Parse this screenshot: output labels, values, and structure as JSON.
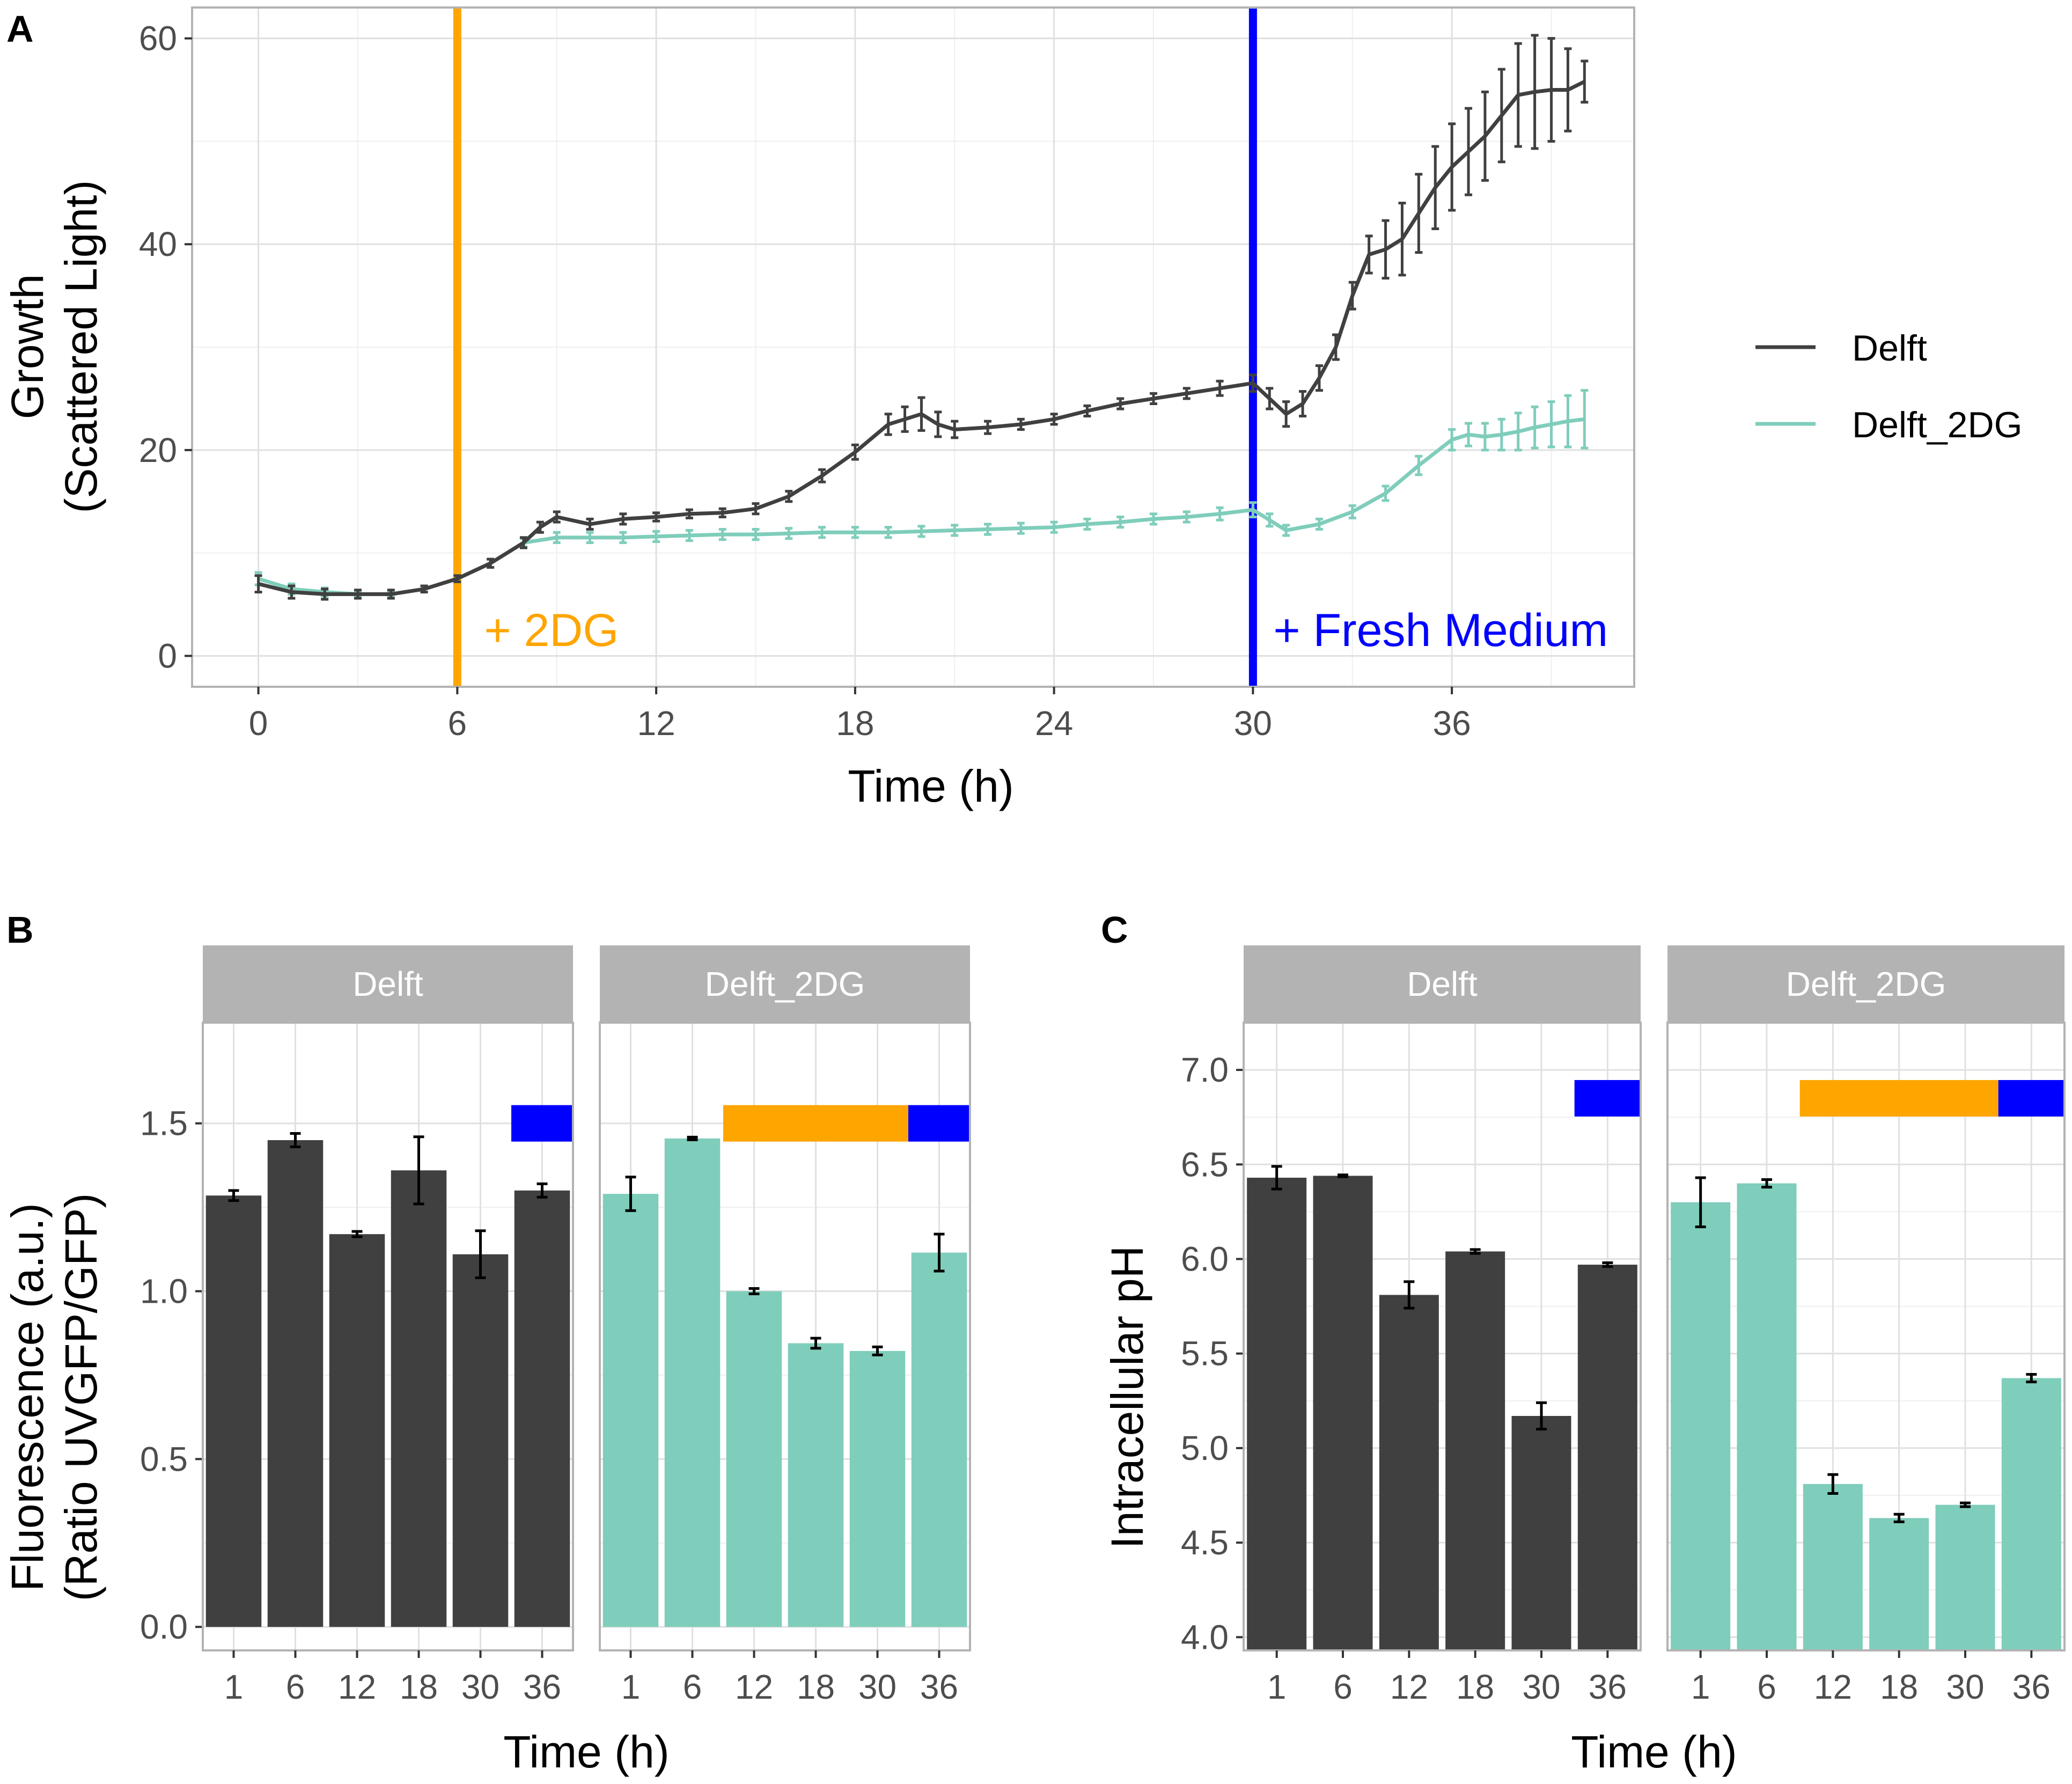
{
  "panels": {
    "a": {
      "letter": "A"
    },
    "b": {
      "letter": "B"
    },
    "c": {
      "letter": "C"
    }
  },
  "colors": {
    "delft": "#404040",
    "delft_2dg": "#7fcdbb",
    "orange": "#ffa500",
    "blue": "#0000ff",
    "strip_bg": "#b3b3b3",
    "grid": "#e0e0e0"
  },
  "legend": [
    {
      "label": "Delft",
      "color": "#404040"
    },
    {
      "label": "Delft_2DG",
      "color": "#7fcdbb"
    }
  ],
  "annotations": {
    "two_dg": "+ 2DG",
    "fresh_medium": "+ Fresh Medium"
  },
  "chart_data": [
    {
      "id": "A",
      "type": "line",
      "title": "",
      "xlabel": "Time (h)",
      "ylabel_lines": [
        "Growth",
        "(Scattered Light)"
      ],
      "xlim": [
        -2,
        41.5
      ],
      "ylim": [
        -3,
        63
      ],
      "xticks": [
        0,
        6,
        12,
        18,
        24,
        30,
        36
      ],
      "yticks": [
        0,
        20,
        40,
        60
      ],
      "vlines": [
        {
          "x": 6,
          "color": "#ffa500",
          "label": "+ 2DG"
        },
        {
          "x": 30,
          "color": "#0000ff",
          "label": "+ Fresh Medium"
        }
      ],
      "series": [
        {
          "name": "Delft",
          "x": [
            0,
            1,
            2,
            3,
            4,
            5,
            6,
            7,
            8,
            8.5,
            9,
            10,
            11,
            12,
            13,
            14,
            15,
            16,
            17,
            18,
            19,
            19.5,
            20,
            20.5,
            21,
            22,
            23,
            24,
            25,
            26,
            27,
            28,
            29,
            30,
            30.5,
            31,
            31.5,
            32,
            32.5,
            33,
            33.5,
            34,
            34.5,
            35,
            35.5,
            36,
            36.5,
            37,
            37.5,
            38,
            38.5,
            39,
            39.5,
            40
          ],
          "y": [
            7,
            6.2,
            6,
            6,
            6,
            6.5,
            7.5,
            9,
            11,
            12.5,
            13.5,
            12.8,
            13.3,
            13.5,
            13.8,
            13.9,
            14.3,
            15.5,
            17.5,
            19.8,
            22.5,
            23,
            23.5,
            22.5,
            22,
            22.2,
            22.5,
            23,
            23.8,
            24.5,
            25,
            25.5,
            26,
            26.5,
            25,
            23.5,
            24.5,
            27,
            30,
            35,
            39,
            39.5,
            40.5,
            43,
            45.5,
            47.5,
            49,
            50.5,
            52.5,
            54.5,
            54.8,
            55,
            55,
            55.8
          ],
          "err": [
            0.8,
            0.6,
            0.5,
            0.4,
            0.4,
            0.3,
            0.3,
            0.4,
            0.5,
            0.5,
            0.5,
            0.5,
            0.5,
            0.4,
            0.4,
            0.4,
            0.5,
            0.5,
            0.6,
            0.7,
            1.0,
            1.2,
            1.6,
            1.2,
            0.8,
            0.6,
            0.5,
            0.5,
            0.5,
            0.5,
            0.5,
            0.5,
            0.7,
            0.8,
            1.0,
            1.2,
            1.2,
            1.2,
            1.2,
            1.3,
            1.8,
            2.8,
            3.5,
            3.8,
            4.0,
            4.2,
            4.2,
            4.3,
            4.5,
            5.0,
            5.5,
            5.0,
            4.0,
            2.0
          ]
        },
        {
          "name": "Delft_2DG",
          "x": [
            0,
            1,
            2,
            3,
            4,
            5,
            6,
            7,
            8,
            9,
            10,
            11,
            12,
            13,
            14,
            15,
            16,
            17,
            18,
            19,
            20,
            21,
            22,
            23,
            24,
            25,
            26,
            27,
            28,
            29,
            30,
            30.5,
            31,
            32,
            33,
            34,
            35,
            36,
            36.5,
            37,
            37.5,
            38,
            38.5,
            39,
            39.5,
            40
          ],
          "y": [
            7.5,
            6.5,
            6.2,
            6,
            6,
            6.5,
            7.5,
            9,
            11,
            11.5,
            11.5,
            11.5,
            11.6,
            11.7,
            11.8,
            11.8,
            11.9,
            12,
            12,
            12,
            12.1,
            12.2,
            12.3,
            12.4,
            12.5,
            12.8,
            13,
            13.3,
            13.5,
            13.8,
            14.2,
            13.2,
            12.2,
            12.8,
            14,
            15.8,
            18.5,
            21,
            21.5,
            21.3,
            21.5,
            21.8,
            22.2,
            22.5,
            22.8,
            23
          ],
          "err": [
            0.6,
            0.5,
            0.4,
            0.3,
            0.3,
            0.3,
            0.3,
            0.4,
            0.4,
            0.5,
            0.5,
            0.5,
            0.5,
            0.5,
            0.5,
            0.5,
            0.5,
            0.5,
            0.5,
            0.5,
            0.5,
            0.5,
            0.5,
            0.5,
            0.5,
            0.5,
            0.5,
            0.5,
            0.5,
            0.6,
            0.7,
            0.6,
            0.5,
            0.5,
            0.6,
            0.7,
            0.9,
            1.0,
            1.1,
            1.3,
            1.5,
            1.8,
            2.0,
            2.2,
            2.5,
            2.8
          ]
        }
      ]
    },
    {
      "id": "B",
      "type": "bar",
      "xlabel": "Time (h)",
      "ylabel_lines": [
        "Fluorescence (a.u.)",
        "(Ratio UVGFP/GFP)"
      ],
      "ylim": [
        -0.07,
        1.8
      ],
      "yticks": [
        0.0,
        0.5,
        1.0,
        1.5
      ],
      "ytick_labels": [
        "0.0",
        "0.5",
        "1.0",
        "1.5"
      ],
      "categories": [
        "1",
        "6",
        "12",
        "18",
        "30",
        "36"
      ],
      "bars_y": 1.5,
      "facets": [
        {
          "name": "Delft",
          "color": "#404040",
          "values": [
            1.285,
            1.45,
            1.17,
            1.36,
            1.11,
            1.3
          ],
          "err": [
            0.015,
            0.02,
            0.008,
            0.1,
            0.07,
            0.02
          ],
          "bars": [
            {
              "from_index": 5,
              "to_index": 5,
              "color": "#0000ff"
            }
          ]
        },
        {
          "name": "Delft_2DG",
          "color": "#7fcdbb",
          "values": [
            1.29,
            1.455,
            1.0,
            0.845,
            0.822,
            1.115
          ],
          "err": [
            0.05,
            0.004,
            0.008,
            0.015,
            0.012,
            0.055
          ],
          "bars": [
            {
              "from_index": 2,
              "to_index": 4,
              "color": "#ffa500"
            },
            {
              "from_index": 5,
              "to_index": 5,
              "color": "#0000ff"
            }
          ]
        }
      ]
    },
    {
      "id": "C",
      "type": "bar",
      "xlabel": "Time (h)",
      "ylabel_lines": [
        "Intracellular pH"
      ],
      "ylim": [
        3.93,
        7.25
      ],
      "ybase": 3.93,
      "yticks": [
        4.0,
        4.5,
        5.0,
        5.5,
        6.0,
        6.5,
        7.0
      ],
      "ytick_labels": [
        "4.0",
        "4.5",
        "5.0",
        "5.5",
        "6.0",
        "6.5",
        "7.0"
      ],
      "categories": [
        "1",
        "6",
        "12",
        "18",
        "30",
        "36"
      ],
      "bars_y": 6.85,
      "facets": [
        {
          "name": "Delft",
          "color": "#404040",
          "values": [
            6.43,
            6.44,
            5.81,
            6.04,
            5.17,
            5.97
          ],
          "err": [
            0.06,
            0.005,
            0.07,
            0.01,
            0.07,
            0.01
          ],
          "bars": [
            {
              "from_index": 5,
              "to_index": 5,
              "color": "#0000ff"
            }
          ]
        },
        {
          "name": "Delft_2DG",
          "color": "#7fcdbb",
          "values": [
            6.3,
            6.4,
            4.81,
            4.63,
            4.7,
            5.37
          ],
          "err": [
            0.13,
            0.02,
            0.05,
            0.02,
            0.01,
            0.02
          ],
          "bars": [
            {
              "from_index": 2,
              "to_index": 4,
              "color": "#ffa500"
            },
            {
              "from_index": 5,
              "to_index": 5,
              "color": "#0000ff"
            }
          ]
        }
      ]
    }
  ]
}
